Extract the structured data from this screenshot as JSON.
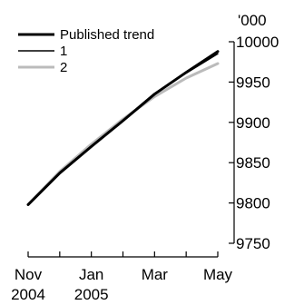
{
  "chart_data": {
    "type": "line",
    "title": "",
    "xlabel": "",
    "ylabel": "",
    "y_unit": "'000",
    "x_categories": [
      "Nov 2004",
      "Dec 2004",
      "Jan 2005",
      "Feb 2005",
      "Mar 2005",
      "Apr 2005",
      "May 2005"
    ],
    "x_tick_labels": [
      {
        "line1": "Nov",
        "line2": "2004"
      },
      {
        "line1": "",
        "line2": ""
      },
      {
        "line1": "Jan",
        "line2": "2005"
      },
      {
        "line1": "",
        "line2": ""
      },
      {
        "line1": "Mar",
        "line2": ""
      },
      {
        "line1": "",
        "line2": ""
      },
      {
        "line1": "May",
        "line2": ""
      }
    ],
    "y_ticks": [
      9750,
      9800,
      9850,
      9900,
      9950,
      10000
    ],
    "y_tick_labels": [
      "9750",
      "9800",
      "9850",
      "9900",
      "9950",
      "10000"
    ],
    "ylim": [
      9750,
      10000
    ],
    "y_axis_side": "right",
    "grid": false,
    "legend_position": "top-left",
    "series": [
      {
        "name": "Published trend",
        "color": "#000000",
        "style": "thick",
        "values": [
          9798,
          9837,
          9870,
          9902,
          9935,
          9962,
          9988
        ]
      },
      {
        "name": "1",
        "color": "#000000",
        "style": "thin",
        "values": [
          9798,
          9837,
          9870,
          9902,
          9935,
          9961,
          9985
        ]
      },
      {
        "name": "2",
        "color": "#bbbbbb",
        "style": "thick",
        "values": [
          9798,
          9839,
          9873,
          9904,
          9932,
          9955,
          9973
        ]
      }
    ]
  }
}
